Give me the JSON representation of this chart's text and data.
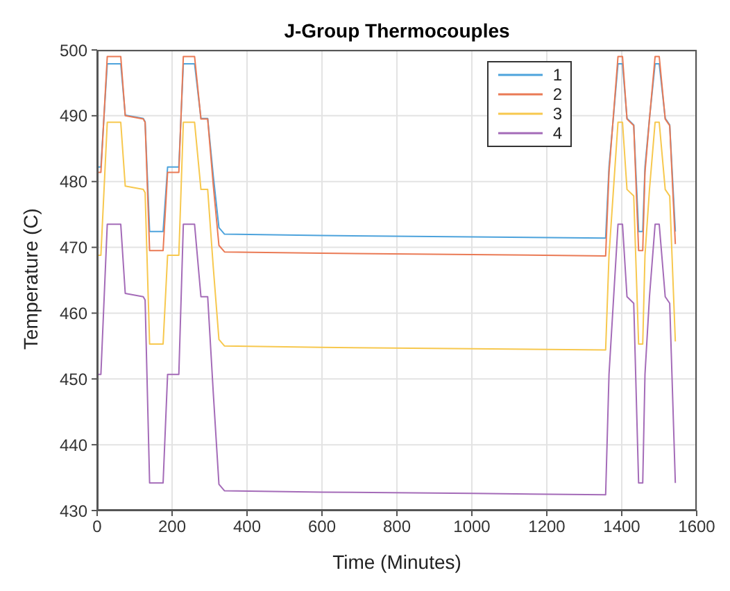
{
  "chart_data": {
    "type": "line",
    "title": "J-Group Thermocouples",
    "xlabel": "Time (Minutes)",
    "ylabel": "Temperature (C)",
    "x": [
      0,
      10,
      27,
      63,
      75,
      123,
      128,
      140,
      176,
      188,
      200,
      218,
      230,
      260,
      277,
      295,
      310,
      325,
      340,
      600,
      1000,
      1357,
      1366,
      1378,
      1390,
      1402,
      1414,
      1432,
      1445,
      1456,
      1462,
      1474,
      1489,
      1500,
      1516,
      1528,
      1543
    ],
    "series": [
      {
        "name": "1",
        "color": "#4da3dc",
        "values": [
          482.2,
          482.2,
          497.9,
          497.9,
          490.1,
          489.6,
          489.1,
          472.4,
          472.4,
          482.2,
          482.2,
          482.2,
          497.9,
          497.9,
          489.6,
          489.6,
          480.8,
          473,
          472,
          471.8,
          471.6,
          471.4,
          482.2,
          490,
          497.9,
          497.9,
          489.6,
          488.6,
          472.4,
          472.4,
          482.2,
          489.6,
          497.9,
          497.9,
          489.6,
          488.6,
          472.4
        ]
      },
      {
        "name": "2",
        "color": "#ea7a55",
        "values": [
          481.4,
          481.4,
          499,
          499,
          490,
          489.5,
          489,
          469.5,
          469.5,
          481.4,
          481.4,
          481.4,
          499,
          499,
          489.5,
          489.5,
          479.4,
          470.3,
          469.3,
          469.1,
          468.9,
          468.7,
          481.4,
          490.2,
          499,
          499,
          489.5,
          488.5,
          469.5,
          469.5,
          481.4,
          489.5,
          499,
          499,
          489.5,
          488.5,
          470.5
        ]
      },
      {
        "name": "3",
        "color": "#f7c84e",
        "values": [
          468.8,
          468.8,
          489,
          489,
          479.3,
          478.8,
          478.3,
          455.3,
          455.3,
          468.8,
          468.8,
          468.8,
          489,
          489,
          478.8,
          478.8,
          466.9,
          456,
          455,
          454.8,
          454.6,
          454.4,
          468.8,
          478.9,
          489,
          489,
          478.8,
          477.8,
          455.3,
          455.3,
          468.8,
          478.8,
          489,
          489,
          478.8,
          477.8,
          455.7
        ]
      },
      {
        "name": "4",
        "color": "#a46bb8",
        "values": [
          450.7,
          450.7,
          473.5,
          473.5,
          463,
          462.5,
          462,
          434.2,
          434.2,
          450.7,
          450.7,
          450.7,
          473.5,
          473.5,
          462.5,
          462.5,
          447.8,
          434,
          433,
          432.8,
          432.6,
          432.4,
          450.7,
          462.1,
          473.5,
          473.5,
          462.5,
          461.5,
          434.2,
          434.2,
          450.7,
          462.5,
          473.5,
          473.5,
          462.5,
          461.5,
          434.2
        ]
      }
    ],
    "xlim": [
      0,
      1600
    ],
    "xticks": [
      0,
      200,
      400,
      600,
      800,
      1000,
      1200,
      1400,
      1600
    ],
    "ylim": [
      430,
      500
    ],
    "yticks": [
      430,
      440,
      450,
      460,
      470,
      480,
      490,
      500
    ],
    "grid": true,
    "legend": "top right"
  }
}
